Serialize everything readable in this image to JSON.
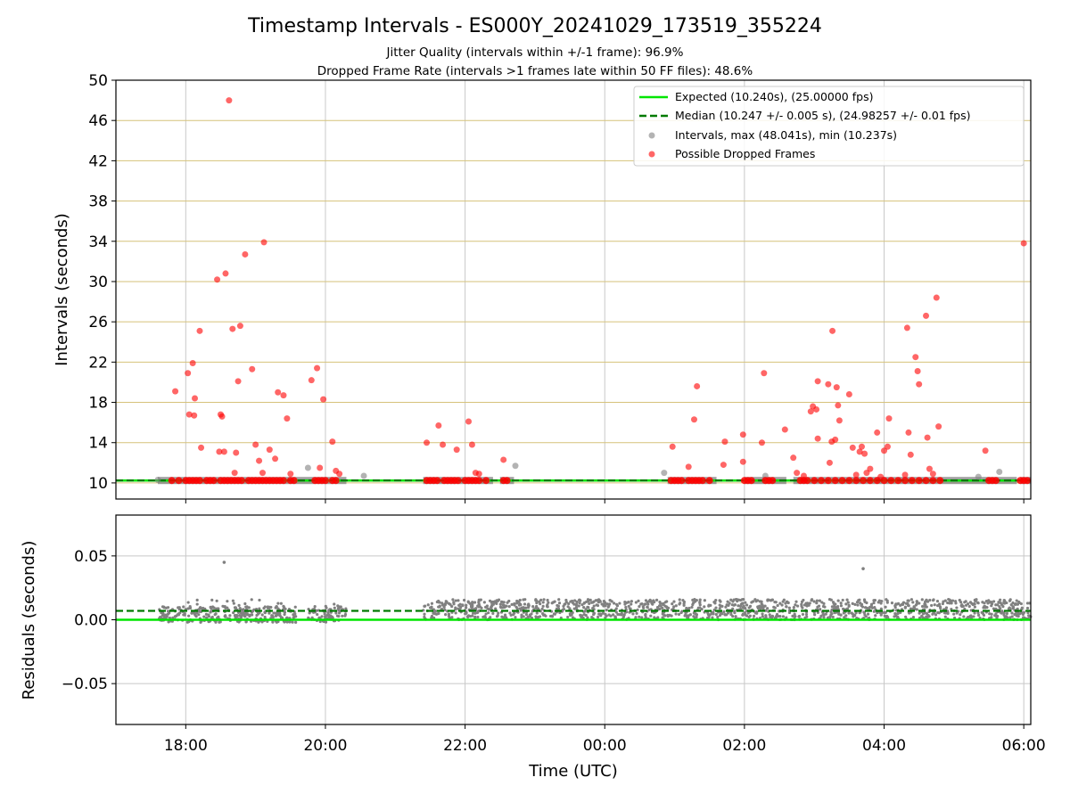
{
  "figure": {
    "title": "Timestamp Intervals - ES000Y_20241029_173519_355224",
    "subtitle_1": "Jitter Quality (intervals within +/-1 frame): 96.9%",
    "subtitle_2": "Dropped Frame Rate (intervals >1 frames late within 50 FF files): 48.6%"
  },
  "colors": {
    "expected": "#00e600",
    "median": "#007a00",
    "intervals": "#808080",
    "dropped": "#ff0000",
    "hgrid": "#d6c27a",
    "grid": "#c8c8c8"
  },
  "chart_data": [
    {
      "type": "scatter",
      "ylabel": "Intervals (seconds)",
      "xlabel": "",
      "x_unit": "hours since 17:00 UTC shown as clock time",
      "xlim": [
        17.0,
        30.1
      ],
      "ylim": [
        8.4,
        50
      ],
      "yticks": [
        10,
        14,
        18,
        22,
        26,
        30,
        34,
        38,
        42,
        46,
        50
      ],
      "xticks": [
        "18:00",
        "20:00",
        "22:00",
        "00:00",
        "02:00",
        "04:00",
        "06:00"
      ],
      "grid": "horizontal lines gold, vertical lines gray",
      "legend_position": "top-right",
      "expected_interval": 10.24,
      "median_interval": 10.247,
      "legend": [
        "Expected (10.240s), (25.00000 fps)",
        "Median (10.247 +/- 0.005 s), (24.98257 +/- 0.01 fps)",
        "Intervals, max (48.041s), min (10.237s)",
        "Possible Dropped Frames"
      ],
      "data_segments": [
        [
          17.6,
          20.3
        ],
        [
          21.4,
          22.4
        ],
        [
          22.5,
          22.7
        ],
        [
          24.9,
          25.6
        ],
        [
          26.0,
          26.6
        ],
        [
          26.7,
          29.9
        ],
        [
          29.95,
          30.1
        ]
      ],
      "baseline_dropped_points": [
        [
          17.8,
          10.24
        ],
        [
          17.9,
          10.24
        ],
        [
          18.0,
          10.24
        ],
        [
          18.05,
          10.24
        ],
        [
          18.1,
          10.24
        ],
        [
          18.15,
          10.24
        ],
        [
          18.2,
          10.24
        ],
        [
          18.3,
          10.24
        ],
        [
          18.35,
          10.24
        ],
        [
          18.4,
          10.24
        ],
        [
          18.5,
          10.24
        ],
        [
          18.55,
          10.24
        ],
        [
          18.6,
          10.24
        ],
        [
          18.65,
          10.24
        ],
        [
          18.7,
          10.24
        ],
        [
          18.75,
          10.24
        ],
        [
          18.8,
          10.24
        ],
        [
          18.9,
          10.24
        ],
        [
          18.95,
          10.24
        ],
        [
          19.0,
          10.24
        ],
        [
          19.05,
          10.24
        ],
        [
          19.1,
          10.24
        ],
        [
          19.15,
          10.24
        ],
        [
          19.2,
          10.24
        ],
        [
          19.25,
          10.24
        ],
        [
          19.3,
          10.24
        ],
        [
          19.35,
          10.24
        ],
        [
          19.4,
          10.24
        ],
        [
          19.5,
          10.24
        ],
        [
          19.55,
          10.24
        ],
        [
          19.85,
          10.24
        ],
        [
          19.9,
          10.24
        ],
        [
          19.95,
          10.24
        ],
        [
          20.0,
          10.24
        ],
        [
          20.1,
          10.24
        ],
        [
          20.15,
          10.24
        ],
        [
          21.45,
          10.24
        ],
        [
          21.5,
          10.24
        ],
        [
          21.55,
          10.24
        ],
        [
          21.6,
          10.24
        ],
        [
          21.7,
          10.24
        ],
        [
          21.75,
          10.24
        ],
        [
          21.8,
          10.24
        ],
        [
          21.85,
          10.24
        ],
        [
          21.9,
          10.24
        ],
        [
          22.0,
          10.24
        ],
        [
          22.05,
          10.24
        ],
        [
          22.1,
          10.24
        ],
        [
          22.15,
          10.24
        ],
        [
          22.2,
          10.24
        ],
        [
          22.3,
          10.24
        ],
        [
          22.55,
          10.24
        ],
        [
          22.6,
          10.24
        ],
        [
          24.95,
          10.24
        ],
        [
          25.0,
          10.24
        ],
        [
          25.05,
          10.24
        ],
        [
          25.1,
          10.24
        ],
        [
          25.2,
          10.24
        ],
        [
          25.25,
          10.24
        ],
        [
          25.3,
          10.24
        ],
        [
          25.35,
          10.24
        ],
        [
          25.4,
          10.24
        ],
        [
          25.5,
          10.24
        ],
        [
          26.0,
          10.24
        ],
        [
          26.05,
          10.24
        ],
        [
          26.1,
          10.24
        ],
        [
          26.3,
          10.24
        ],
        [
          26.35,
          10.24
        ],
        [
          26.4,
          10.24
        ],
        [
          26.8,
          10.24
        ],
        [
          26.85,
          10.24
        ],
        [
          26.9,
          10.24
        ],
        [
          27.0,
          10.24
        ],
        [
          27.1,
          10.24
        ],
        [
          27.2,
          10.24
        ],
        [
          27.3,
          10.24
        ],
        [
          27.4,
          10.24
        ],
        [
          27.5,
          10.24
        ],
        [
          27.6,
          10.24
        ],
        [
          27.7,
          10.24
        ],
        [
          27.8,
          10.24
        ],
        [
          27.9,
          10.24
        ],
        [
          28.0,
          10.24
        ],
        [
          28.1,
          10.24
        ],
        [
          28.2,
          10.24
        ],
        [
          28.3,
          10.24
        ],
        [
          28.4,
          10.24
        ],
        [
          28.5,
          10.24
        ],
        [
          28.6,
          10.24
        ],
        [
          28.7,
          10.24
        ],
        [
          28.8,
          10.24
        ],
        [
          29.5,
          10.24
        ],
        [
          29.55,
          10.24
        ],
        [
          29.6,
          10.24
        ],
        [
          29.95,
          10.24
        ],
        [
          30.0,
          10.24
        ],
        [
          30.05,
          10.24
        ]
      ],
      "dropped_points": [
        [
          17.85,
          19.1
        ],
        [
          18.03,
          20.9
        ],
        [
          18.05,
          16.8
        ],
        [
          18.1,
          21.9
        ],
        [
          18.12,
          16.7
        ],
        [
          18.13,
          18.4
        ],
        [
          18.2,
          25.1
        ],
        [
          18.22,
          13.5
        ],
        [
          18.45,
          30.2
        ],
        [
          18.48,
          13.1
        ],
        [
          18.5,
          16.8
        ],
        [
          18.52,
          16.6
        ],
        [
          18.55,
          13.1
        ],
        [
          18.57,
          30.8
        ],
        [
          18.62,
          48.0
        ],
        [
          18.67,
          25.3
        ],
        [
          18.7,
          11.0
        ],
        [
          18.72,
          13.0
        ],
        [
          18.75,
          20.1
        ],
        [
          18.78,
          25.6
        ],
        [
          18.85,
          32.7
        ],
        [
          18.95,
          21.3
        ],
        [
          19.0,
          13.8
        ],
        [
          19.05,
          12.2
        ],
        [
          19.1,
          11.0
        ],
        [
          19.12,
          33.9
        ],
        [
          19.2,
          13.3
        ],
        [
          19.28,
          12.4
        ],
        [
          19.32,
          19.0
        ],
        [
          19.4,
          18.7
        ],
        [
          19.45,
          16.4
        ],
        [
          19.5,
          10.9
        ],
        [
          19.8,
          20.2
        ],
        [
          19.88,
          21.4
        ],
        [
          19.92,
          11.5
        ],
        [
          19.97,
          18.3
        ],
        [
          20.1,
          14.1
        ],
        [
          20.15,
          11.2
        ],
        [
          20.2,
          10.9
        ],
        [
          21.45,
          14.0
        ],
        [
          21.62,
          15.7
        ],
        [
          21.68,
          13.8
        ],
        [
          21.88,
          13.3
        ],
        [
          22.05,
          16.1
        ],
        [
          22.1,
          13.8
        ],
        [
          22.15,
          11.0
        ],
        [
          22.2,
          10.9
        ],
        [
          22.55,
          12.3
        ],
        [
          24.97,
          13.6
        ],
        [
          25.2,
          11.6
        ],
        [
          25.28,
          16.3
        ],
        [
          25.32,
          19.6
        ],
        [
          25.7,
          11.8
        ],
        [
          25.72,
          14.1
        ],
        [
          25.98,
          14.8
        ],
        [
          25.98,
          12.1
        ],
        [
          26.25,
          14.0
        ],
        [
          26.28,
          20.9
        ],
        [
          26.58,
          15.3
        ],
        [
          26.7,
          12.5
        ],
        [
          26.75,
          11.0
        ],
        [
          26.85,
          10.7
        ],
        [
          26.95,
          17.1
        ],
        [
          26.98,
          17.6
        ],
        [
          27.03,
          17.3
        ],
        [
          27.05,
          20.1
        ],
        [
          27.05,
          14.4
        ],
        [
          27.2,
          19.8
        ],
        [
          27.22,
          12.0
        ],
        [
          27.25,
          14.1
        ],
        [
          27.26,
          25.1
        ],
        [
          27.3,
          14.3
        ],
        [
          27.32,
          19.5
        ],
        [
          27.34,
          17.7
        ],
        [
          27.36,
          16.2
        ],
        [
          27.5,
          18.8
        ],
        [
          27.55,
          13.5
        ],
        [
          27.6,
          10.8
        ],
        [
          27.65,
          13.1
        ],
        [
          27.68,
          13.6
        ],
        [
          27.72,
          12.9
        ],
        [
          27.75,
          11.0
        ],
        [
          27.8,
          11.4
        ],
        [
          27.9,
          15.0
        ],
        [
          27.95,
          10.6
        ],
        [
          28.0,
          13.2
        ],
        [
          28.05,
          13.6
        ],
        [
          28.07,
          16.4
        ],
        [
          28.3,
          10.8
        ],
        [
          28.33,
          25.4
        ],
        [
          28.35,
          15.0
        ],
        [
          28.38,
          12.8
        ],
        [
          28.45,
          22.5
        ],
        [
          28.48,
          21.1
        ],
        [
          28.5,
          19.8
        ],
        [
          28.6,
          26.6
        ],
        [
          28.62,
          14.5
        ],
        [
          28.65,
          11.4
        ],
        [
          28.7,
          10.9
        ],
        [
          28.75,
          28.4
        ],
        [
          28.78,
          15.6
        ],
        [
          29.45,
          13.2
        ],
        [
          30.0,
          33.8
        ]
      ],
      "gray_points": [
        [
          17.6,
          10.3
        ],
        [
          19.75,
          11.5
        ],
        [
          20.55,
          10.7
        ],
        [
          22.72,
          11.7
        ],
        [
          24.85,
          11.0
        ],
        [
          26.3,
          10.7
        ],
        [
          29.35,
          10.6
        ],
        [
          29.65,
          11.1
        ]
      ]
    },
    {
      "type": "scatter",
      "ylabel": "Residuals (seconds)",
      "xlabel": "Time (UTC)",
      "xlim": [
        17.0,
        30.1
      ],
      "ylim": [
        -0.082,
        0.082
      ],
      "ytick_labels": [
        "−0.05",
        "0.00",
        "0.05"
      ],
      "ytick_values": [
        -0.05,
        0.0,
        0.05
      ],
      "xticks": [
        "18:00",
        "20:00",
        "22:00",
        "00:00",
        "02:00",
        "04:00",
        "06:00"
      ],
      "expected_line": 0.0,
      "median_line": 0.007,
      "outliers": [
        [
          18.55,
          0.045
        ],
        [
          27.7,
          0.04
        ]
      ],
      "early_band": {
        "start": 17.6,
        "end": 20.3,
        "low": -0.002,
        "high": 0.016
      },
      "late_band": {
        "start": 21.4,
        "end": 30.1,
        "low": 0.0,
        "high": 0.016
      }
    }
  ]
}
